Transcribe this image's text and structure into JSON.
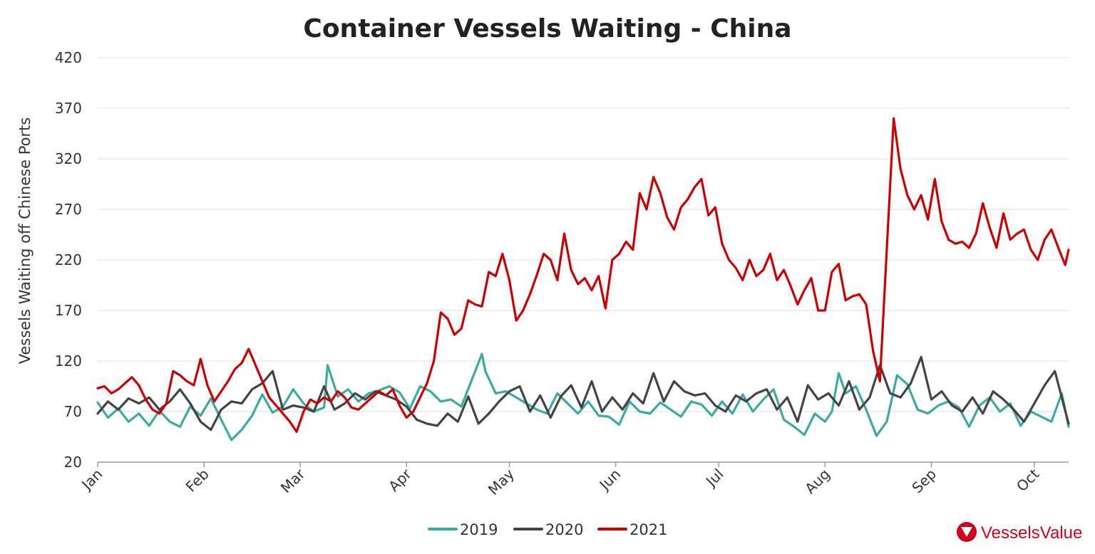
{
  "chart_data": {
    "type": "line",
    "title": "Container Vessels Waiting - China",
    "xlabel": "",
    "ylabel": "Vessels Waiting off Chinese Ports",
    "ylim": [
      20,
      420
    ],
    "yticks": [
      20,
      70,
      120,
      170,
      220,
      270,
      320,
      370,
      420
    ],
    "grid": true,
    "legend_position": "bottom-center",
    "x_unit": "day of year",
    "xlim": [
      1,
      284
    ],
    "months": [
      {
        "label": "Jan",
        "day": 1
      },
      {
        "label": "Feb",
        "day": 32
      },
      {
        "label": "Mar",
        "day": 60
      },
      {
        "label": "Apr",
        "day": 91
      },
      {
        "label": "May",
        "day": 121
      },
      {
        "label": "Jun",
        "day": 152
      },
      {
        "label": "Jul",
        "day": 182
      },
      {
        "label": "Aug",
        "day": 213
      },
      {
        "label": "Sep",
        "day": 244
      },
      {
        "label": "Oct",
        "day": 274
      }
    ],
    "series": [
      {
        "name": "2019",
        "color": "#3aaba0",
        "x": [
          1,
          4,
          7,
          10,
          13,
          16,
          19,
          22,
          25,
          28,
          31,
          34,
          37,
          40,
          43,
          46,
          49,
          52,
          55,
          58,
          61,
          64,
          67,
          68,
          71,
          74,
          77,
          80,
          83,
          86,
          89,
          92,
          95,
          98,
          101,
          104,
          107,
          110,
          113,
          114,
          117,
          120,
          123,
          126,
          129,
          132,
          135,
          138,
          141,
          144,
          147,
          150,
          153,
          156,
          159,
          162,
          165,
          168,
          171,
          174,
          177,
          180,
          183,
          186,
          189,
          192,
          195,
          198,
          201,
          204,
          207,
          210,
          213,
          215,
          217,
          219,
          222,
          225,
          228,
          231,
          234,
          237,
          240,
          243,
          246,
          249,
          252,
          255,
          258,
          261,
          264,
          267,
          270,
          273,
          276,
          279,
          282,
          284
        ],
        "y": [
          79,
          64,
          73,
          60,
          68,
          56,
          71,
          60,
          55,
          75,
          66,
          83,
          62,
          42,
          52,
          66,
          87,
          69,
          75,
          92,
          78,
          70,
          74,
          116,
          85,
          92,
          80,
          88,
          91,
          95,
          89,
          73,
          95,
          90,
          80,
          82,
          75,
          101,
          127,
          110,
          88,
          90,
          84,
          78,
          72,
          68,
          88,
          78,
          68,
          80,
          66,
          65,
          57,
          80,
          70,
          68,
          79,
          72,
          65,
          80,
          77,
          66,
          80,
          68,
          87,
          70,
          82,
          92,
          62,
          55,
          47,
          68,
          60,
          70,
          108,
          88,
          95,
          72,
          46,
          60,
          106,
          97,
          72,
          68,
          76,
          80,
          74,
          55,
          76,
          84,
          70,
          78,
          56,
          70,
          65,
          60,
          88,
          55
        ]
      },
      {
        "name": "2020",
        "color": "#444444",
        "x": [
          1,
          4,
          7,
          10,
          13,
          16,
          19,
          22,
          25,
          28,
          31,
          34,
          37,
          40,
          43,
          46,
          49,
          52,
          55,
          58,
          61,
          64,
          67,
          70,
          73,
          76,
          79,
          82,
          85,
          88,
          91,
          94,
          97,
          100,
          103,
          106,
          109,
          112,
          115,
          118,
          121,
          124,
          127,
          130,
          133,
          136,
          139,
          142,
          145,
          148,
          151,
          154,
          157,
          160,
          163,
          166,
          169,
          172,
          175,
          178,
          181,
          184,
          187,
          190,
          193,
          196,
          199,
          202,
          205,
          208,
          211,
          214,
          217,
          220,
          223,
          226,
          229,
          232,
          235,
          238,
          241,
          244,
          247,
          250,
          253,
          256,
          259,
          262,
          265,
          268,
          271,
          274,
          277,
          280,
          284
        ],
        "y": [
          68,
          80,
          72,
          83,
          78,
          84,
          72,
          80,
          92,
          78,
          60,
          52,
          72,
          80,
          78,
          92,
          98,
          110,
          72,
          76,
          74,
          70,
          95,
          72,
          78,
          88,
          82,
          90,
          86,
          82,
          75,
          62,
          58,
          56,
          68,
          60,
          85,
          58,
          68,
          80,
          90,
          95,
          70,
          86,
          64,
          85,
          96,
          74,
          100,
          70,
          84,
          72,
          88,
          78,
          108,
          80,
          100,
          90,
          86,
          88,
          76,
          70,
          86,
          80,
          88,
          92,
          72,
          84,
          60,
          96,
          82,
          88,
          76,
          100,
          72,
          84,
          116,
          88,
          84,
          98,
          124,
          82,
          90,
          76,
          70,
          84,
          68,
          90,
          82,
          72,
          60,
          78,
          96,
          110,
          58
        ]
      },
      {
        "name": "2021",
        "color": "#cc0000",
        "x": [
          1,
          3,
          5,
          7,
          9,
          11,
          13,
          15,
          17,
          19,
          21,
          23,
          25,
          27,
          29,
          31,
          33,
          35,
          37,
          39,
          41,
          43,
          45,
          47,
          49,
          51,
          53,
          55,
          57,
          59,
          61,
          63,
          65,
          67,
          69,
          71,
          73,
          75,
          77,
          79,
          81,
          83,
          85,
          87,
          89,
          91,
          93,
          95,
          97,
          99,
          101,
          103,
          105,
          107,
          109,
          111,
          113,
          115,
          117,
          119,
          121,
          123,
          125,
          127,
          129,
          131,
          133,
          135,
          137,
          139,
          141,
          143,
          145,
          147,
          149,
          151,
          153,
          155,
          157,
          159,
          161,
          163,
          165,
          167,
          169,
          171,
          173,
          175,
          177,
          179,
          181,
          183,
          185,
          187,
          189,
          191,
          193,
          195,
          197,
          199,
          201,
          203,
          205,
          207,
          209,
          211,
          213,
          215,
          217,
          219,
          221,
          223,
          225,
          227,
          229,
          231,
          233,
          235,
          237,
          239,
          241,
          243,
          245,
          247,
          249,
          251,
          253,
          255,
          257,
          259,
          261,
          263,
          265,
          267,
          269,
          271,
          273,
          275,
          277,
          279,
          281,
          283,
          284
        ],
        "y": [
          93,
          95,
          88,
          92,
          98,
          104,
          96,
          82,
          72,
          68,
          78,
          110,
          106,
          100,
          96,
          122,
          96,
          80,
          90,
          100,
          112,
          118,
          132,
          116,
          100,
          84,
          76,
          68,
          60,
          50,
          70,
          82,
          78,
          84,
          80,
          90,
          84,
          74,
          72,
          78,
          84,
          90,
          86,
          92,
          76,
          64,
          70,
          84,
          98,
          120,
          168,
          162,
          146,
          152,
          180,
          176,
          174,
          208,
          204,
          226,
          200,
          160,
          170,
          186,
          205,
          226,
          220,
          200,
          246,
          210,
          196,
          202,
          190,
          204,
          172,
          220,
          226,
          238,
          230,
          286,
          270,
          302,
          286,
          262,
          250,
          272,
          280,
          292,
          300,
          264,
          272,
          236,
          220,
          212,
          200,
          220,
          204,
          210,
          226,
          200,
          210,
          194,
          176,
          190,
          202,
          170,
          170,
          208,
          216,
          180,
          184,
          186,
          176,
          130,
          100,
          230,
          360,
          310,
          284,
          270,
          284,
          260,
          300,
          258,
          240,
          236,
          238,
          232,
          246,
          276,
          252,
          232,
          266,
          240,
          246,
          250,
          230,
          220,
          240,
          250,
          232,
          215,
          230
        ]
      }
    ]
  },
  "logo": {
    "text": "VesselsValue"
  }
}
